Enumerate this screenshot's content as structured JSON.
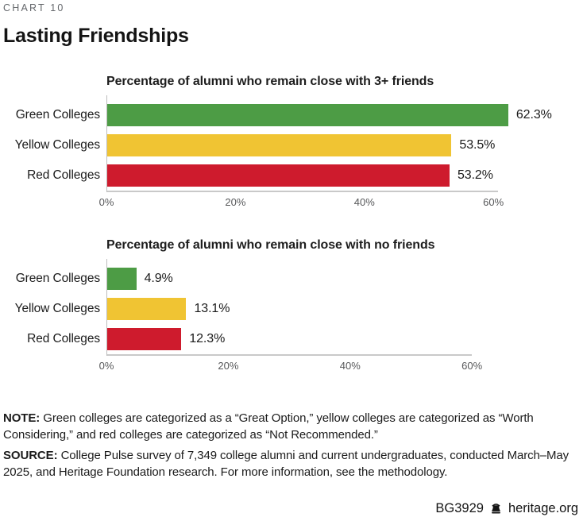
{
  "header": {
    "kicker": "CHART 10",
    "title": "Lasting Friendships"
  },
  "chart_data": [
    {
      "type": "bar",
      "orientation": "horizontal",
      "title": "Percentage of alumni who remain close with 3+ friends",
      "categories": [
        "Green Colleges",
        "Yellow Colleges",
        "Red Colleges"
      ],
      "values": [
        62.3,
        53.5,
        53.2
      ],
      "value_labels": [
        "62.3%",
        "53.5%",
        "53.2%"
      ],
      "bar_colors": [
        "#4d9c45",
        "#f0c433",
        "#ce1b2d"
      ],
      "xlim": [
        0,
        60
      ],
      "xticks": [
        0,
        20,
        40,
        60
      ],
      "xtick_labels": [
        "0%",
        "20%",
        "40%",
        "60%"
      ],
      "grid": false,
      "legend": "none"
    },
    {
      "type": "bar",
      "orientation": "horizontal",
      "title": "Percentage of alumni who remain close with no friends",
      "categories": [
        "Green Colleges",
        "Yellow Colleges",
        "Red Colleges"
      ],
      "values": [
        4.9,
        13.1,
        12.3
      ],
      "value_labels": [
        "4.9%",
        "13.1%",
        "12.3%"
      ],
      "bar_colors": [
        "#4d9c45",
        "#f0c433",
        "#ce1b2d"
      ],
      "xlim": [
        0,
        60
      ],
      "xticks": [
        0,
        20,
        40,
        60
      ],
      "xtick_labels": [
        "0%",
        "20%",
        "40%",
        "60%"
      ],
      "grid": false,
      "legend": "none"
    }
  ],
  "note": {
    "label": "NOTE:",
    "text": "Green colleges are categorized as a “Great Option,” yellow colleges are categorized as “Worth Considering,” and red colleges are categorized as “Not Recommended.”"
  },
  "source": {
    "label": "SOURCE:",
    "text": "College Pulse survey of 7,349 college alumni and current undergraduates, conducted March–May 2025, and Heritage Foundation research. For more information, see the methodology."
  },
  "footer": {
    "report_id": "BG3929",
    "site": "heritage.org",
    "icon": "liberty-bell-icon"
  },
  "colors": {
    "green": "#4d9c45",
    "yellow": "#f0c433",
    "red": "#ce1b2d",
    "axis_line": "#c9c9c9",
    "y_axis_line": "#bdbdbd",
    "tick_text": "#57585a",
    "kicker_text": "#65686c"
  }
}
